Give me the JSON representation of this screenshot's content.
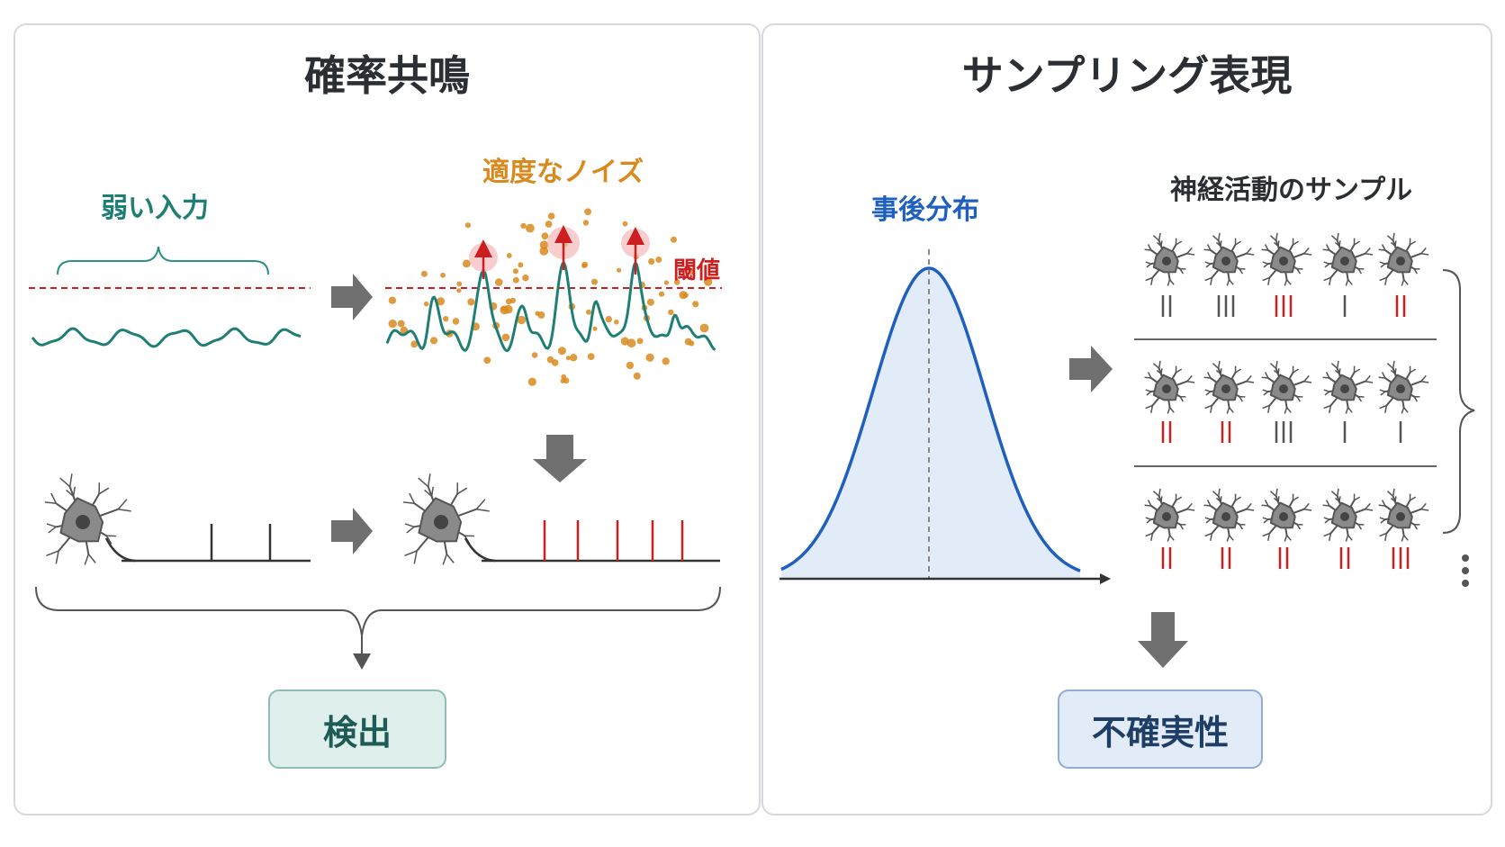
{
  "left": {
    "title": "確率共鳴",
    "weak_input_label": "弱い入力",
    "noise_label": "適度なノイズ",
    "threshold_label": "閾値",
    "result_label": "検出"
  },
  "right": {
    "title": "サンプリング表現",
    "posterior_label": "事後分布",
    "samples_label": "神経活動のサンプル",
    "result_label": "不確実性",
    "sample_rows": [
      [
        {
          "n": 2,
          "red": false
        },
        {
          "n": 3,
          "red": false
        },
        {
          "n": 3,
          "red": true
        },
        {
          "n": 1,
          "red": false
        },
        {
          "n": 2,
          "red": true
        }
      ],
      [
        {
          "n": 2,
          "red": true
        },
        {
          "n": 2,
          "red": true
        },
        {
          "n": 3,
          "red": false
        },
        {
          "n": 1,
          "red": false
        },
        {
          "n": 1,
          "red": false
        }
      ],
      [
        {
          "n": 2,
          "red": true
        },
        {
          "n": 2,
          "red": true
        },
        {
          "n": 2,
          "red": true
        },
        {
          "n": 2,
          "red": true
        },
        {
          "n": 3,
          "red": true
        }
      ]
    ]
  },
  "colors": {
    "teal": "#1f7f75",
    "orange": "#d98a1e",
    "red": "#cc1f1f",
    "blue": "#1f5fbf",
    "gray_arrow": "#6f6f6f"
  },
  "icons": [
    "neuron-icon",
    "arrow-right-icon",
    "arrow-down-icon",
    "brace-icon",
    "ellipsis-vertical-icon"
  ]
}
